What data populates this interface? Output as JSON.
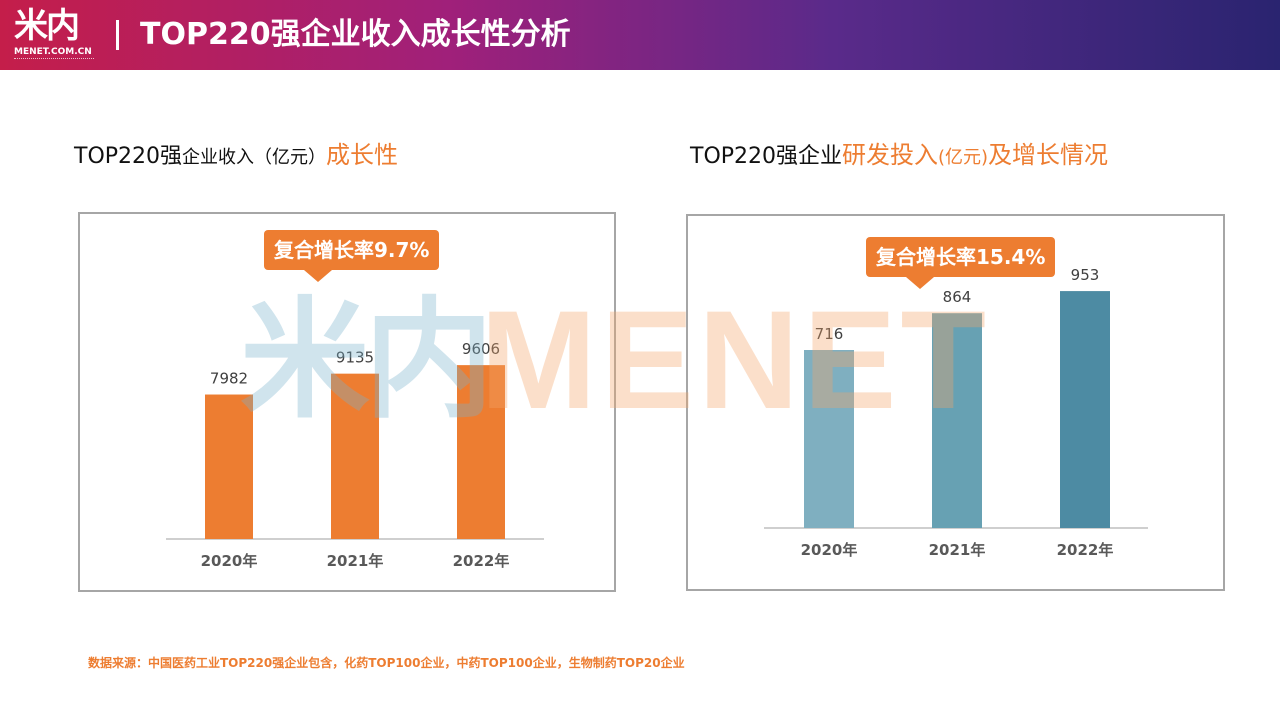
{
  "header": {
    "logo_cn": "米内",
    "logo_en": "MENET.COM.CN",
    "title": "TOP220强企业收入成长性分析"
  },
  "left_chart_title": {
    "part1": "TOP220强",
    "part2": "企业收入（亿元）",
    "accent": "成长性"
  },
  "right_chart_title": {
    "part1": "TOP220强企业",
    "accent1": "研发投入",
    "unit": "(亿元)",
    "accent2": "及增长情况"
  },
  "left_callout": "复合增长率9.7%",
  "right_callout": "复合增长率15.4%",
  "watermark": {
    "cn": "米内",
    "en": "MENET"
  },
  "source": "数据来源：中国医药工业TOP220强企业包含，化药TOP100企业，中药TOP100企业，生物制药TOP20企业",
  "chart_data": [
    {
      "type": "bar",
      "categories": [
        "2020年",
        "2021年",
        "2022年"
      ],
      "values": [
        7982,
        9135,
        9606
      ],
      "colors": [
        "#ed7d31",
        "#ed7d31",
        "#ed7d31"
      ],
      "ylim": [
        0,
        12000
      ],
      "grid": false
    },
    {
      "type": "bar",
      "categories": [
        "2020年",
        "2021年",
        "2022年"
      ],
      "values": [
        716,
        864,
        953
      ],
      "colors": [
        "#7fafc0",
        "#67a1b3",
        "#4d8ba3"
      ],
      "ylim": [
        0,
        1100
      ],
      "grid": false
    }
  ],
  "colors": {
    "accent": "#ed7d31",
    "border": "#a6a6a6",
    "axis": "#bfbfbf"
  }
}
